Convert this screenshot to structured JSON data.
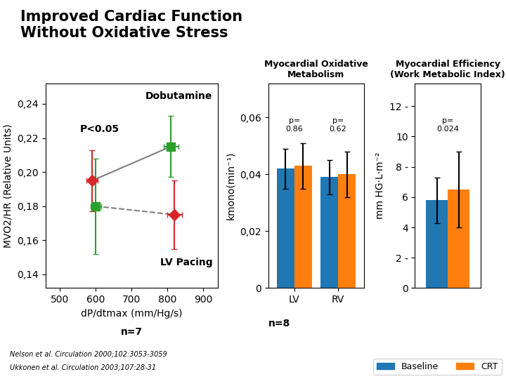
{
  "title": "Improved Cardiac Function\nWithout Oxidative Stress",
  "annotations": [
    "Nelson et al. Circulation 2000;102:3053-3059",
    "Ukkonen et al. Circulation 2003;107:28-31"
  ],
  "chart_data": [
    {
      "type": "scatter",
      "xlabel": "dP/dtmax (mm/Hg/s)",
      "ylabel": "MVO2/HR (Relative Units)",
      "xlim": [
        460,
        940
      ],
      "xticks": [
        500,
        600,
        700,
        800,
        900
      ],
      "ylim": [
        0.132,
        0.252
      ],
      "yticks": [
        {
          "value": 0.14,
          "label": "0,14"
        },
        {
          "value": 0.16,
          "label": "0,16"
        },
        {
          "value": 0.18,
          "label": "0,18"
        },
        {
          "value": 0.2,
          "label": "0,20"
        },
        {
          "value": 0.22,
          "label": "0,22"
        },
        {
          "value": 0.24,
          "label": "0,24"
        }
      ],
      "series": [
        {
          "type": "scatter",
          "x": [
            600,
            810
          ],
          "values": [
            0.18,
            0.215
          ],
          "xerr": [
            15,
            20
          ],
          "yerr": [
            0.028,
            0.018
          ],
          "color": "#2ca02c",
          "marker": "square"
        },
        {
          "type": "scatter",
          "x": [
            590,
            820
          ],
          "values": [
            0.195,
            0.175
          ],
          "xerr": [
            15,
            20
          ],
          "yerr": [
            0.018,
            0.02
          ],
          "color": "#d62728",
          "marker": "diamond"
        },
        {
          "type": "line",
          "x": [
            600,
            820
          ],
          "values": [
            0.18,
            0.175
          ],
          "color": "#7f7f7f",
          "line_style": "dashed"
        },
        {
          "type": "line",
          "x": [
            590,
            810
          ],
          "values": [
            0.195,
            0.215
          ],
          "color": "#7f7f7f",
          "line_style": "solid"
        }
      ],
      "annotations": [
        "Dobutamine",
        "LV Pacing",
        "P<0.05",
        "n=7"
      ]
    },
    {
      "type": "bar",
      "title": "Myocardial Oxidative\nMetabolism",
      "ylabel": "kmono(min⁻¹)",
      "categories": [
        "LV",
        "RV"
      ],
      "series": [
        {
          "name": "Baseline",
          "color": "#1f77b4",
          "values": [
            0.042,
            0.039
          ],
          "yerr": [
            0.007,
            0.006
          ]
        },
        {
          "name": "CRT",
          "color": "#ff7f0e",
          "values": [
            0.043,
            0.04
          ],
          "yerr": [
            0.008,
            0.008
          ]
        }
      ],
      "ylim": [
        0,
        0.072
      ],
      "yticks": [
        0,
        {
          "value": 0.02,
          "label": "0,02"
        },
        {
          "value": 0.04,
          "label": "0,04"
        },
        {
          "value": 0.06,
          "label": "0,06"
        }
      ],
      "annotations": [
        "p=\n0.86",
        "p=\n0.62",
        "n=8"
      ]
    },
    {
      "type": "bar",
      "title": "Myocardial Efficiency\n(Work Metabolic Index)",
      "ylabel": "mm HG·L·m⁻²",
      "categories": [
        null
      ],
      "series": [
        {
          "name": "Baseline",
          "color": "#1f77b4",
          "values": [
            5.8
          ],
          "yerr": [
            1.5
          ]
        },
        {
          "name": "CRT",
          "color": "#ff7f0e",
          "values": [
            6.5
          ],
          "yerr": [
            2.5
          ]
        }
      ],
      "ylim": [
        0,
        13.5
      ],
      "yticks": [
        0,
        {
          "value": 2,
          "label": "2 -"
        },
        4,
        6,
        {
          "value": 8,
          "label": "8 -"
        },
        10,
        {
          "value": 12,
          "label": "12 -"
        }
      ],
      "tick_labels": "y",
      "legend": "lower right",
      "annotations": [
        "p=\n0.024"
      ]
    }
  ]
}
